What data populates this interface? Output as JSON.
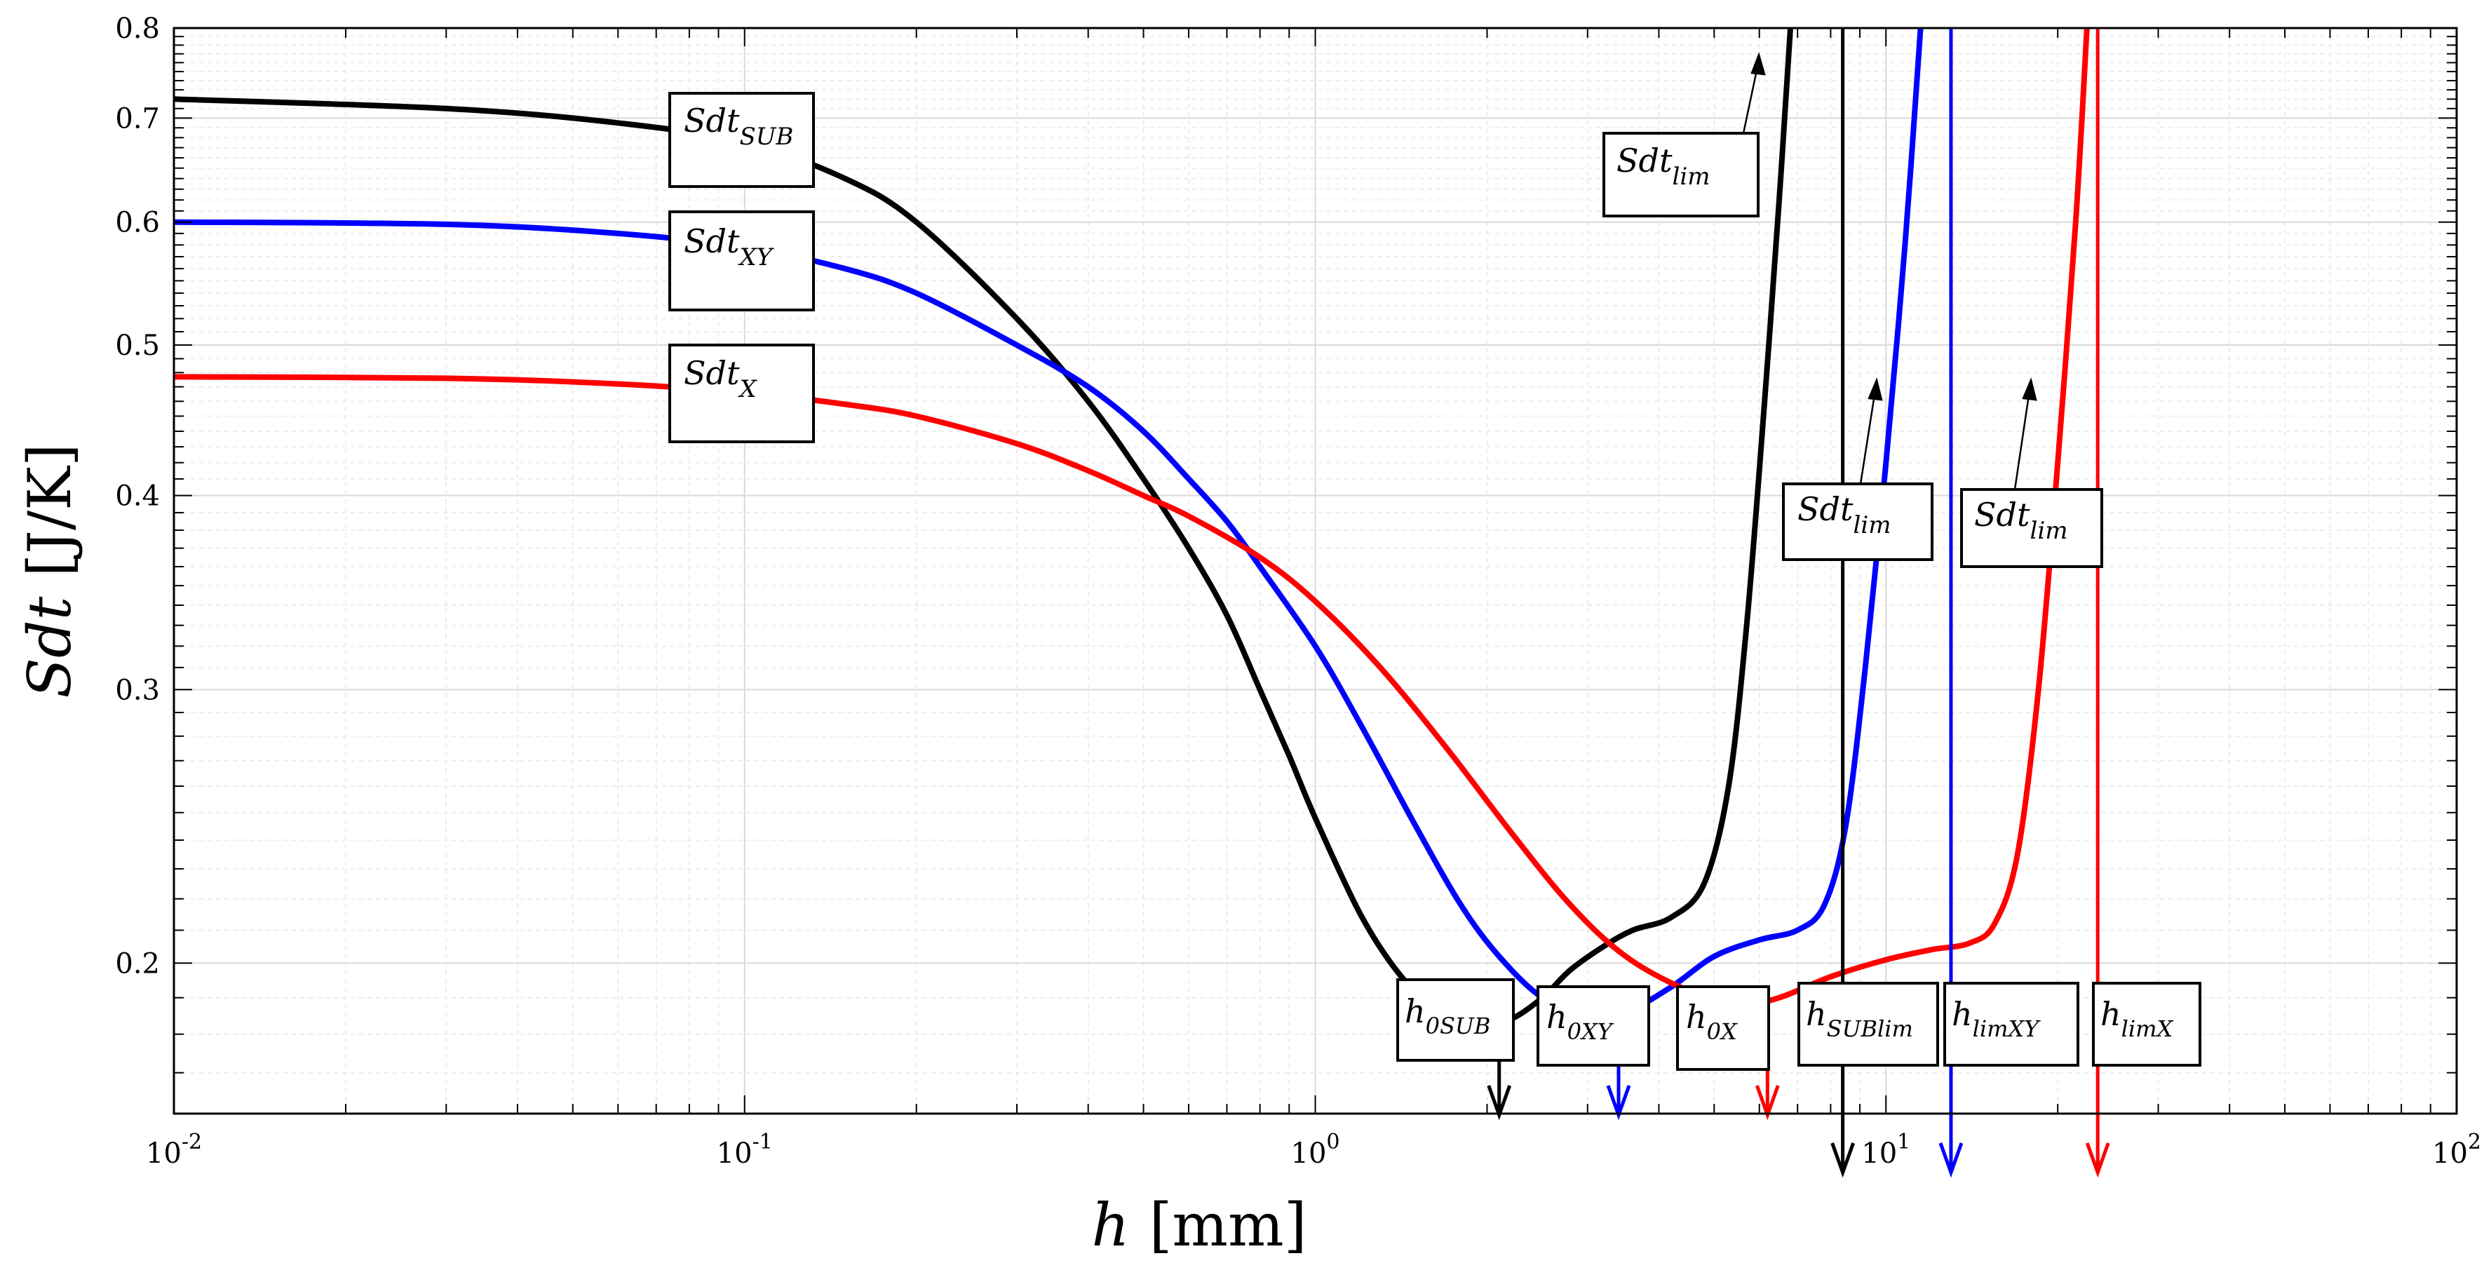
{
  "chart_data": {
    "type": "line",
    "x_scale": "log",
    "y_scale": "log",
    "xlim": [
      0.01,
      100
    ],
    "ylim": [
      0.16,
      0.8
    ],
    "xlabel": {
      "symbol": "h",
      "unit": "[mm]"
    },
    "ylabel": {
      "symbol": "Sdt",
      "unit": "[J/K]"
    },
    "grid": true,
    "x_ticks": [
      {
        "value": 0.01,
        "base": "10",
        "exp": "-2"
      },
      {
        "value": 0.1,
        "base": "10",
        "exp": "-1"
      },
      {
        "value": 1,
        "base": "10",
        "exp": "0"
      },
      {
        "value": 10,
        "base": "10",
        "exp": "1"
      },
      {
        "value": 100,
        "base": "10",
        "exp": "2"
      }
    ],
    "y_ticks": [
      {
        "value": 0.2,
        "label": "0.2"
      },
      {
        "value": 0.3,
        "label": "0.3"
      },
      {
        "value": 0.4,
        "label": "0.4"
      },
      {
        "value": 0.5,
        "label": "0.5"
      },
      {
        "value": 0.6,
        "label": "0.6"
      },
      {
        "value": 0.7,
        "label": "0.7"
      },
      {
        "value": 0.8,
        "label": "0.8"
      }
    ],
    "series": [
      {
        "name": "Sdt_SUB",
        "color": "#000000",
        "points": [
          [
            0.01,
            0.72
          ],
          [
            0.03,
            0.71
          ],
          [
            0.06,
            0.695
          ],
          [
            0.1,
            0.675
          ],
          [
            0.15,
            0.64
          ],
          [
            0.2,
            0.6
          ],
          [
            0.3,
            0.52
          ],
          [
            0.4,
            0.46
          ],
          [
            0.5,
            0.41
          ],
          [
            0.6,
            0.37
          ],
          [
            0.7,
            0.335
          ],
          [
            0.8,
            0.3
          ],
          [
            0.9,
            0.272
          ],
          [
            1.0,
            0.248
          ],
          [
            1.2,
            0.215
          ],
          [
            1.4,
            0.197
          ],
          [
            1.6,
            0.188
          ],
          [
            1.8,
            0.184
          ],
          [
            2.0,
            0.183
          ],
          [
            2.2,
            0.184
          ],
          [
            2.5,
            0.19
          ],
          [
            2.8,
            0.198
          ],
          [
            3.2,
            0.205
          ],
          [
            3.6,
            0.21
          ],
          [
            4.2,
            0.214
          ],
          [
            4.8,
            0.225
          ],
          [
            5.3,
            0.26
          ],
          [
            5.7,
            0.33
          ],
          [
            6.1,
            0.45
          ],
          [
            6.5,
            0.62
          ],
          [
            6.8,
            0.8
          ]
        ]
      },
      {
        "name": "Sdt_XY",
        "color": "#0000ff",
        "points": [
          [
            0.01,
            0.6
          ],
          [
            0.03,
            0.598
          ],
          [
            0.06,
            0.59
          ],
          [
            0.1,
            0.578
          ],
          [
            0.15,
            0.56
          ],
          [
            0.2,
            0.54
          ],
          [
            0.3,
            0.5
          ],
          [
            0.4,
            0.47
          ],
          [
            0.5,
            0.44
          ],
          [
            0.6,
            0.41
          ],
          [
            0.7,
            0.385
          ],
          [
            0.8,
            0.36
          ],
          [
            1.0,
            0.32
          ],
          [
            1.2,
            0.285
          ],
          [
            1.5,
            0.245
          ],
          [
            1.8,
            0.218
          ],
          [
            2.1,
            0.202
          ],
          [
            2.5,
            0.19
          ],
          [
            3.0,
            0.185
          ],
          [
            3.5,
            0.186
          ],
          [
            4.2,
            0.193
          ],
          [
            5.0,
            0.202
          ],
          [
            6.0,
            0.207
          ],
          [
            7.0,
            0.21
          ],
          [
            7.8,
            0.218
          ],
          [
            8.5,
            0.245
          ],
          [
            9.2,
            0.31
          ],
          [
            10.0,
            0.42
          ],
          [
            10.8,
            0.58
          ],
          [
            11.5,
            0.8
          ]
        ]
      },
      {
        "name": "Sdt_X",
        "color": "#ff0000",
        "points": [
          [
            0.01,
            0.477
          ],
          [
            0.03,
            0.476
          ],
          [
            0.06,
            0.472
          ],
          [
            0.1,
            0.466
          ],
          [
            0.15,
            0.458
          ],
          [
            0.2,
            0.45
          ],
          [
            0.3,
            0.432
          ],
          [
            0.4,
            0.415
          ],
          [
            0.5,
            0.4
          ],
          [
            0.6,
            0.388
          ],
          [
            0.8,
            0.365
          ],
          [
            1.0,
            0.342
          ],
          [
            1.3,
            0.31
          ],
          [
            1.7,
            0.275
          ],
          [
            2.2,
            0.243
          ],
          [
            2.8,
            0.218
          ],
          [
            3.5,
            0.202
          ],
          [
            4.5,
            0.192
          ],
          [
            5.5,
            0.188
          ],
          [
            6.5,
            0.19
          ],
          [
            8.0,
            0.196
          ],
          [
            10.0,
            0.201
          ],
          [
            12.0,
            0.204
          ],
          [
            14.0,
            0.206
          ],
          [
            15.5,
            0.212
          ],
          [
            17.0,
            0.235
          ],
          [
            18.5,
            0.3
          ],
          [
            20.0,
            0.42
          ],
          [
            21.5,
            0.6
          ],
          [
            22.5,
            0.8
          ]
        ]
      }
    ],
    "vertical_markers": [
      {
        "name": "h_0SUB",
        "x": 2.1,
        "color": "#000000",
        "from_y": 0.183
      },
      {
        "name": "h_0XY",
        "x": 3.4,
        "color": "#0000ff",
        "from_y": 0.186
      },
      {
        "name": "h_0X",
        "x": 6.2,
        "color": "#ff0000",
        "from_y": 0.188
      },
      {
        "name": "h_SUBlim",
        "x": 8.4,
        "color": "#000000",
        "from_y": 0.8
      },
      {
        "name": "h_limXY",
        "x": 13.0,
        "color": "#0000ff",
        "from_y": 0.8
      },
      {
        "name": "h_limX",
        "x": 23.5,
        "color": "#ff0000",
        "from_y": 0.8
      }
    ],
    "annotations": {
      "curves": [
        {
          "base": "Sdt",
          "sub": "SUB"
        },
        {
          "base": "Sdt",
          "sub": "XY"
        },
        {
          "base": "Sdt",
          "sub": "X"
        },
        {
          "base": "Sdt",
          "sub": "lim"
        },
        {
          "base": "Sdt",
          "sub": "lim"
        },
        {
          "base": "Sdt",
          "sub": "lim"
        }
      ],
      "markers": [
        {
          "base": "h",
          "sub": "0SUB"
        },
        {
          "base": "h",
          "sub": "0XY"
        },
        {
          "base": "h",
          "sub": "0X"
        },
        {
          "base": "h",
          "sub": "SUBlim"
        },
        {
          "base": "h",
          "sub": "limXY"
        },
        {
          "base": "h",
          "sub": "limX"
        }
      ]
    }
  }
}
